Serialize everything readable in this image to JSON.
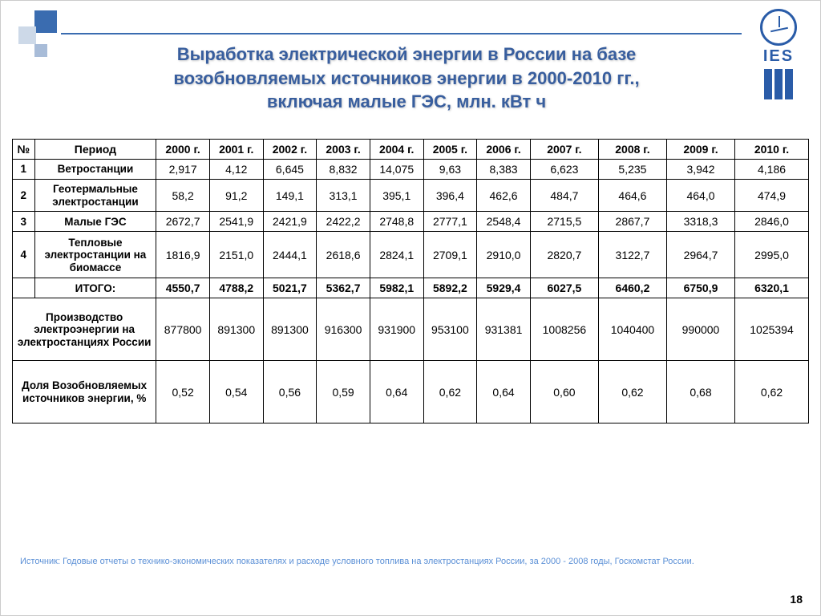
{
  "title_lines": [
    "Выработка электрической энергии в России на базе",
    "возобновляемых источников энергии в 2000-2010 гг.,",
    "включая малые ГЭС, млн. кВт ч"
  ],
  "logo_text": "IES",
  "page_number": "18",
  "source_note": "Источник: Годовые отчеты о технико-экономических показателях и расходе условного топлива на электростанциях России, за 2000 - 2008 годы, Госкомстат России.",
  "table": {
    "header": [
      "№",
      "Период",
      "2000 г.",
      "2001 г.",
      "2002 г.",
      "2003 г.",
      "2004 г.",
      "2005 г.",
      "2006 г.",
      "2007 г.",
      "2008 г.",
      "2009 г.",
      "2010 г."
    ],
    "rows": [
      {
        "num": "1",
        "label": "Ветростанции",
        "cells": [
          "2,917",
          "4,12",
          "6,645",
          "8,832",
          "14,075",
          "9,63",
          "8,383",
          "6,623",
          "5,235",
          "3,942",
          "4,186"
        ]
      },
      {
        "num": "2",
        "label": "Геотермальные электростанции",
        "cells": [
          "58,2",
          "91,2",
          "149,1",
          "313,1",
          "395,1",
          "396,4",
          "462,6",
          "484,7",
          "464,6",
          "464,0",
          "474,9"
        ]
      },
      {
        "num": "3",
        "label": "Малые ГЭС",
        "cells": [
          "2672,7",
          "2541,9",
          "2421,9",
          "2422,2",
          "2748,8",
          "2777,1",
          "2548,4",
          "2715,5",
          "2867,7",
          "3318,3",
          "2846,0"
        ]
      },
      {
        "num": "4",
        "label": "Тепловые электростанции на биомассе",
        "cells": [
          "1816,9",
          "2151,0",
          "2444,1",
          "2618,6",
          "2824,1",
          "2709,1",
          "2910,0",
          "2820,7",
          "3122,7",
          "2964,7",
          "2995,0"
        ]
      }
    ],
    "total": {
      "label": "ИТОГО:",
      "cells": [
        "4550,7",
        "4788,2",
        "5021,7",
        "5362,7",
        "5982,1",
        "5892,2",
        "5929,4",
        "6027,5",
        "6460,2",
        "6750,9",
        "6320,1"
      ]
    },
    "production": {
      "label": "Производство электроэнергии на электростанциях России",
      "cells": [
        "877800",
        "891300",
        "891300",
        "916300",
        "931900",
        "953100",
        "931381",
        "1008256",
        "1040400",
        "990000",
        "1025394"
      ]
    },
    "share": {
      "label": "Доля Возобновляемых источников энергии, %",
      "cells": [
        "0,52",
        "0,54",
        "0,56",
        "0,59",
        "0,64",
        "0,62",
        "0,64",
        "0,60",
        "0,62",
        "0,68",
        "0,62"
      ]
    }
  },
  "colors": {
    "title": "#385e9e",
    "accent": "#3a6cb0",
    "border": "#000000",
    "source": "#5a8fd6",
    "background": "#ffffff"
  },
  "fontsizes": {
    "title": 22,
    "cell": 14,
    "source": 11,
    "pagenum": 14
  }
}
